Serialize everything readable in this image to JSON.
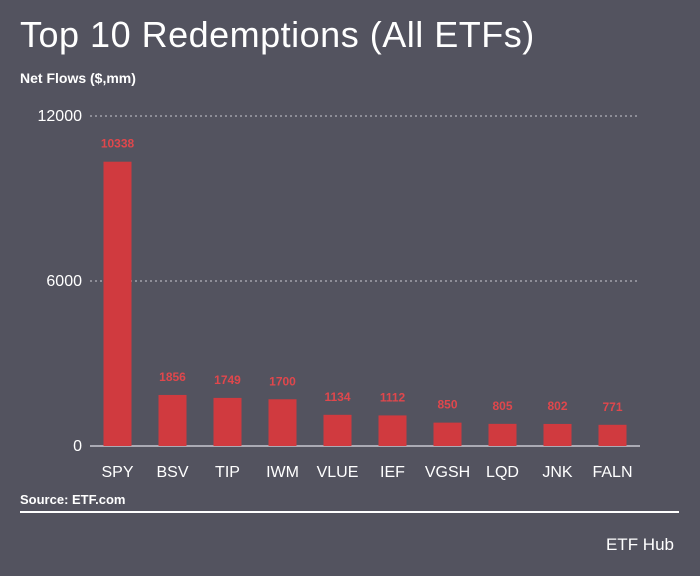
{
  "header": {
    "title": "Top 10 Redemptions (All ETFs)",
    "subtitle": "Net Flows ($,mm)"
  },
  "footer": {
    "source": "Source: ETF.com",
    "brand": "ETF Hub"
  },
  "colors": {
    "background": "#53535f",
    "bar": "#d03a3f",
    "value_label": "#e0474c",
    "text": "#ffffff",
    "gridline": "#c8c8d0"
  },
  "chart_data": {
    "type": "bar",
    "title": "Top 10 Redemptions (All ETFs)",
    "ylabel": "Net Flows ($,mm)",
    "xlabel": "",
    "categories": [
      "SPY",
      "BSV",
      "TIP",
      "IWM",
      "VLUE",
      "IEF",
      "VGSH",
      "LQD",
      "JNK",
      "FALN"
    ],
    "values": [
      10338,
      1856,
      1749,
      1700,
      1134,
      1112,
      850,
      805,
      802,
      771
    ],
    "ylim": [
      0,
      12000
    ],
    "yticks": [
      0,
      6000,
      12000
    ],
    "grid": "dashed horizontal at upper ticks",
    "legend": "none",
    "data_labels": true
  }
}
